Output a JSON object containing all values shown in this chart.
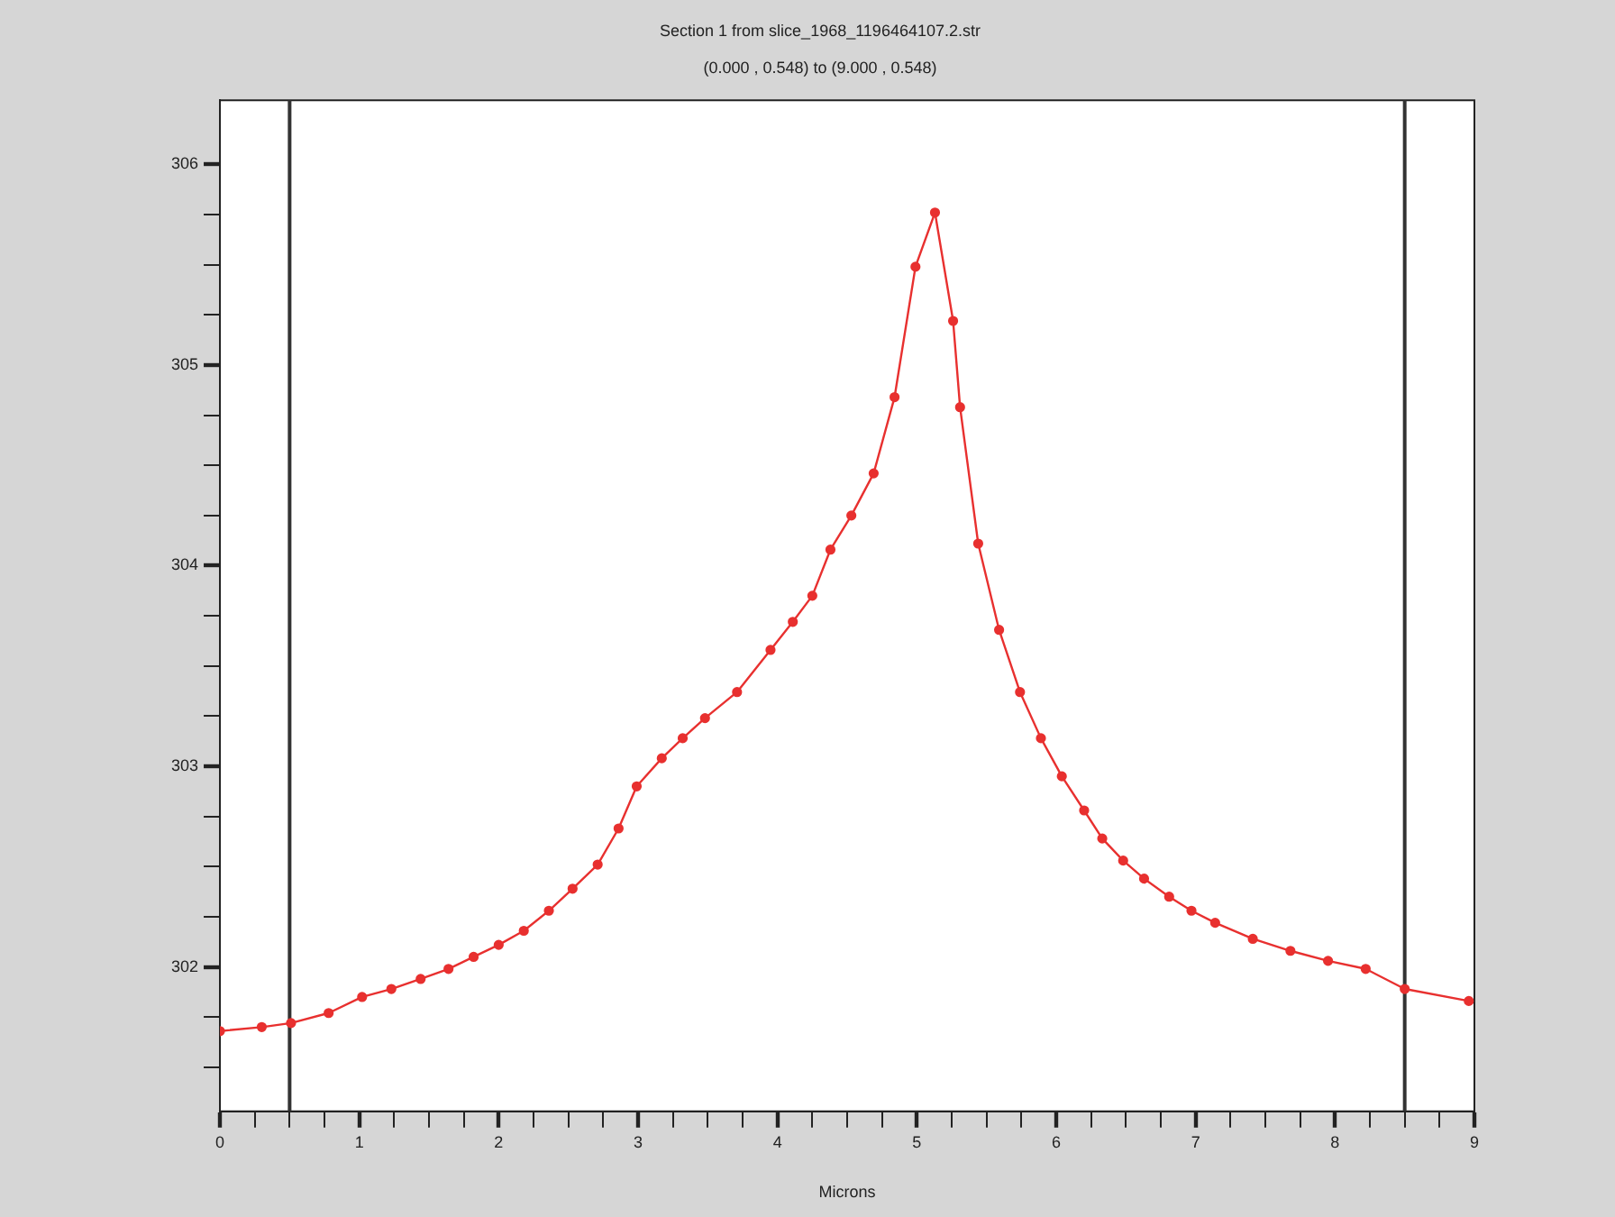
{
  "chart_data": {
    "type": "line",
    "title": "Section 1 from slice_1968_1196464107.2.str",
    "subtitle": "(0.000 , 0.548) to (9.000 , 0.548)",
    "xlabel": "Microns",
    "series": [
      {
        "color": "#e8302f",
        "x": [
          0,
          0.3,
          0.51,
          0.78,
          1.02,
          1.23,
          1.44,
          1.64,
          1.82,
          2.0,
          2.18,
          2.36,
          2.53,
          2.71,
          2.86,
          2.99,
          3.17,
          3.32,
          3.48,
          3.71,
          3.95,
          4.11,
          4.25,
          4.38,
          4.53,
          4.69,
          4.84,
          4.99,
          5.13,
          5.26,
          5.31,
          5.44,
          5.59,
          5.74,
          5.89,
          6.04,
          6.2,
          6.33,
          6.48,
          6.63,
          6.81,
          6.97,
          7.14,
          7.41,
          7.68,
          7.95,
          8.22,
          8.5,
          8.96
        ],
        "values": [
          301.68,
          301.7,
          301.72,
          301.77,
          301.85,
          301.89,
          301.94,
          301.99,
          302.05,
          302.11,
          302.18,
          302.28,
          302.39,
          302.51,
          302.69,
          302.9,
          303.04,
          303.14,
          303.24,
          303.37,
          303.58,
          303.72,
          303.85,
          304.08,
          304.25,
          304.46,
          304.84,
          305.49,
          305.76,
          305.22,
          304.79,
          304.11,
          303.68,
          303.37,
          303.14,
          302.95,
          302.78,
          302.64,
          302.53,
          302.44,
          302.35,
          302.28,
          302.22,
          302.14,
          302.08,
          302.03,
          301.99,
          301.89,
          301.83
        ]
      }
    ],
    "marker": "circle",
    "line_style": "solid",
    "legend": false,
    "xlim": [
      0,
      9
    ],
    "ylim": [
      301.28,
      306.32
    ],
    "xticks": [
      0,
      {
        "value": 0.25,
        "label": null
      },
      {
        "value": 0.5,
        "label": null
      },
      {
        "value": 0.75,
        "label": null
      },
      1,
      {
        "value": 1.25,
        "label": null
      },
      {
        "value": 1.5,
        "label": null
      },
      {
        "value": 1.75,
        "label": null
      },
      2,
      {
        "value": 2.25,
        "label": null
      },
      {
        "value": 2.5,
        "label": null
      },
      {
        "value": 2.75,
        "label": null
      },
      3,
      {
        "value": 3.25,
        "label": null
      },
      {
        "value": 3.5,
        "label": null
      },
      {
        "value": 3.75,
        "label": null
      },
      4,
      {
        "value": 4.25,
        "label": null
      },
      {
        "value": 4.5,
        "label": null
      },
      {
        "value": 4.75,
        "label": null
      },
      5,
      {
        "value": 5.25,
        "label": null
      },
      {
        "value": 5.5,
        "label": null
      },
      {
        "value": 5.75,
        "label": null
      },
      6,
      {
        "value": 6.25,
        "label": null
      },
      {
        "value": 6.5,
        "label": null
      },
      {
        "value": 6.75,
        "label": null
      },
      7,
      {
        "value": 7.25,
        "label": null
      },
      {
        "value": 7.5,
        "label": null
      },
      {
        "value": 7.75,
        "label": null
      },
      8,
      {
        "value": 8.25,
        "label": null
      },
      {
        "value": 8.5,
        "label": null
      },
      {
        "value": 8.75,
        "label": null
      },
      9
    ],
    "yticks": [
      {
        "value": 301.5,
        "label": null
      },
      {
        "value": 301.75,
        "label": null
      },
      302,
      {
        "value": 302.25,
        "label": null
      },
      {
        "value": 302.5,
        "label": null
      },
      {
        "value": 302.75,
        "label": null
      },
      303,
      {
        "value": 303.25,
        "label": null
      },
      {
        "value": 303.5,
        "label": null
      },
      {
        "value": 303.75,
        "label": null
      },
      304,
      {
        "value": 304.25,
        "label": null
      },
      {
        "value": 304.5,
        "label": null
      },
      {
        "value": 304.75,
        "label": null
      },
      305,
      {
        "value": 305.25,
        "label": null
      },
      {
        "value": 305.5,
        "label": null
      },
      {
        "value": 305.75,
        "label": null
      },
      306
    ],
    "ref_lines": [
      {
        "axis": "x",
        "value": 0.5,
        "color": "#333333"
      },
      {
        "axis": "x",
        "value": 8.5,
        "color": "#333333"
      }
    ]
  }
}
